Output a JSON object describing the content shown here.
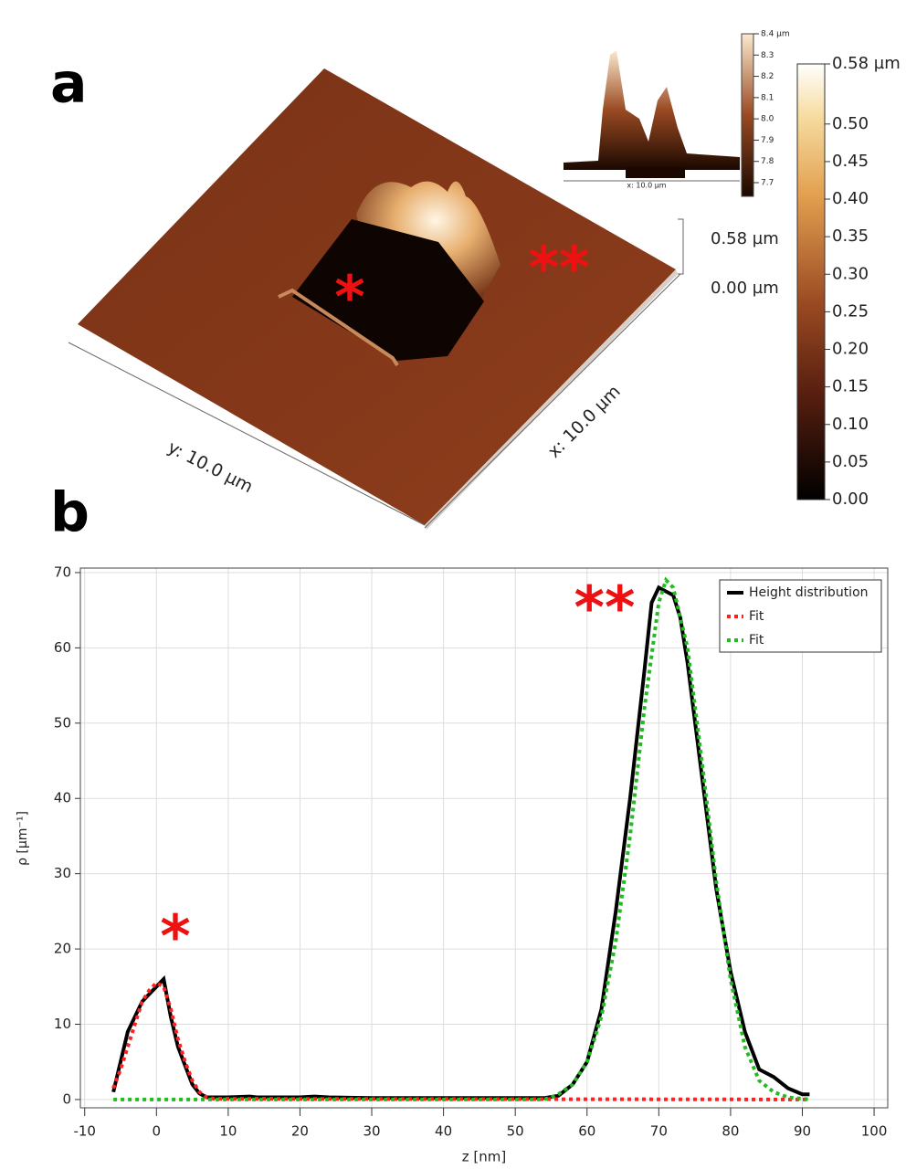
{
  "panel_a": {
    "label": "a",
    "y_axis_label": "y: 10.0 µm",
    "x_axis_label": "x: 10.0 µm",
    "z_scale": [
      "0.58 µm",
      "0.00 µm"
    ],
    "markers": [
      "*",
      "**"
    ],
    "colorbar": {
      "lim": [
        0,
        0.58
      ],
      "ticks": [
        {
          "value": 0,
          "label": "0.00"
        },
        {
          "value": 0.05,
          "label": "0.05"
        },
        {
          "value": 0.1,
          "label": "0.10"
        },
        {
          "value": 0.15,
          "label": "0.15"
        },
        {
          "value": 0.2,
          "label": "0.20"
        },
        {
          "value": 0.25,
          "label": "0.25"
        },
        {
          "value": 0.3,
          "label": "0.30"
        },
        {
          "value": 0.35,
          "label": "0.35"
        },
        {
          "value": 0.4,
          "label": "0.40"
        },
        {
          "value": 0.45,
          "label": "0.45"
        },
        {
          "value": 0.5,
          "label": "0.50"
        },
        {
          "value": 0.58,
          "label": "0.58 µm"
        }
      ]
    },
    "inset": {
      "x_axis_label": "x: 10.0 µm",
      "colorbar": {
        "lim": [
          7.67,
          8.4
        ],
        "ticks": [
          7.7,
          7.8,
          7.9,
          {
            "value": 8,
            "label": "8.0"
          },
          8.1,
          8.2,
          8.3,
          {
            "value": 8.4,
            "label": "8.4 µm"
          }
        ]
      }
    }
  },
  "chart_data": {
    "type": "line",
    "label": "b",
    "x_label": "z [nm]",
    "y_label": "ρ [µm⁻¹]",
    "xlim": [
      -10.6,
      101.9
    ],
    "ylim": [
      -1.1,
      70.6
    ],
    "xticks": [
      -10,
      0,
      10,
      20,
      30,
      40,
      50,
      60,
      70,
      80,
      90,
      100
    ],
    "yticks": [
      0,
      10,
      20,
      30,
      40,
      50,
      60,
      70
    ],
    "grid": true,
    "legend": "top-right",
    "annotations": [
      "**",
      "*"
    ],
    "series": [
      {
        "name": "Height distribution",
        "color": "#000000",
        "style": "solid",
        "x": [
          -6,
          -5,
          -4,
          -3,
          -2,
          -1,
          0,
          1,
          2,
          3,
          4,
          5,
          6,
          7,
          8,
          10,
          13,
          14,
          20,
          22,
          24,
          30,
          40,
          50,
          54,
          56,
          58,
          60,
          62,
          64,
          66,
          68,
          69,
          70,
          71,
          72,
          73,
          74,
          76,
          78,
          80,
          82,
          84,
          86,
          88,
          90,
          91
        ],
        "values": [
          1,
          5,
          9,
          11,
          13,
          14,
          15,
          16,
          11,
          7,
          4.5,
          2,
          0.8,
          0.3,
          0.3,
          0.3,
          0.4,
          0.3,
          0.3,
          0.4,
          0.3,
          0.2,
          0.2,
          0.2,
          0.2,
          0.5,
          2,
          5,
          12,
          25,
          40,
          57,
          66,
          68,
          67.5,
          67,
          64,
          58,
          43,
          28,
          17,
          9,
          4,
          3,
          1.5,
          0.7,
          0.7
        ]
      },
      {
        "name": "Fit",
        "color": "#ff2020",
        "style": "dotted",
        "x": [
          -6,
          -5,
          -4,
          -3,
          -2,
          -1,
          0,
          1,
          2,
          3,
          4,
          5,
          6,
          7,
          8,
          91
        ],
        "values": [
          1.5,
          4,
          7,
          10,
          13,
          14.5,
          15.5,
          15,
          12,
          8,
          5,
          2.5,
          1,
          0.3,
          0.1,
          0
        ]
      },
      {
        "name": "Fit",
        "color": "#22bb22",
        "style": "dotted",
        "x": [
          -6,
          54,
          55,
          56,
          58,
          60,
          62,
          64,
          66,
          68,
          70,
          71,
          72,
          74,
          76,
          78,
          80,
          82,
          84,
          86,
          88,
          91
        ],
        "values": [
          0,
          0,
          0.3,
          0.7,
          2,
          5,
          11,
          21,
          35,
          52,
          66,
          69,
          68,
          60,
          45,
          29,
          16,
          7,
          2.5,
          1,
          0.3,
          0
        ]
      }
    ]
  }
}
